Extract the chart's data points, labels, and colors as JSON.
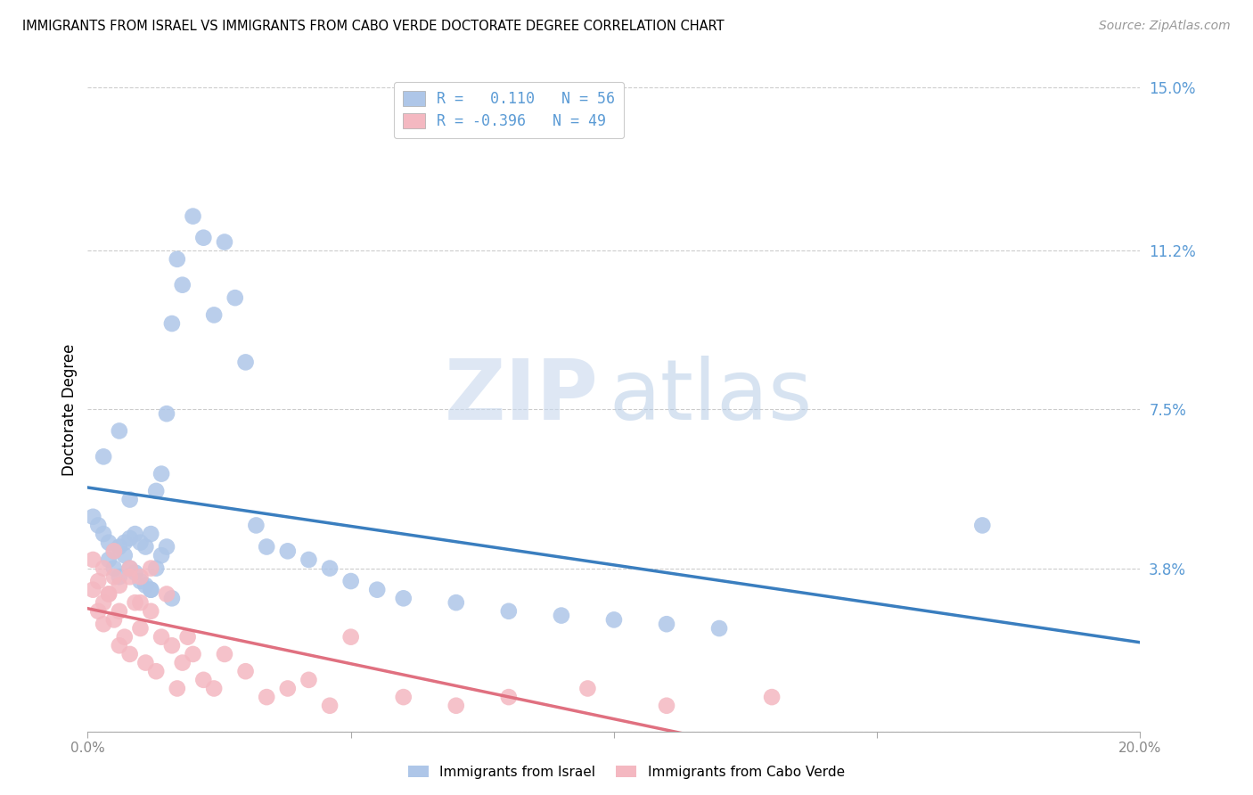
{
  "title": "IMMIGRANTS FROM ISRAEL VS IMMIGRANTS FROM CABO VERDE DOCTORATE DEGREE CORRELATION CHART",
  "source": "Source: ZipAtlas.com",
  "ylabel": "Doctorate Degree",
  "xlim": [
    0.0,
    0.2
  ],
  "ylim": [
    0.0,
    0.15
  ],
  "ytick_vals": [
    0.0,
    0.038,
    0.075,
    0.112,
    0.15
  ],
  "ytick_labels": [
    "",
    "3.8%",
    "7.5%",
    "11.2%",
    "15.0%"
  ],
  "xtick_vals": [
    0.0,
    0.05,
    0.1,
    0.15,
    0.2
  ],
  "xtick_labels": [
    "0.0%",
    "",
    "",
    "",
    "20.0%"
  ],
  "legend1_r": "0.110",
  "legend1_n": "56",
  "legend2_r": "-0.396",
  "legend2_n": "49",
  "israel_color": "#aec6e8",
  "caboverde_color": "#f4b8c1",
  "israel_line_color": "#3a7ebf",
  "caboverde_line_color": "#e07080",
  "grid_color": "#cccccc",
  "israel_x": [
    0.001,
    0.002,
    0.003,
    0.004,
    0.004,
    0.005,
    0.005,
    0.006,
    0.006,
    0.007,
    0.007,
    0.008,
    0.008,
    0.009,
    0.009,
    0.01,
    0.01,
    0.011,
    0.011,
    0.012,
    0.012,
    0.013,
    0.013,
    0.014,
    0.014,
    0.015,
    0.015,
    0.016,
    0.017,
    0.018,
    0.02,
    0.022,
    0.024,
    0.026,
    0.028,
    0.03,
    0.032,
    0.034,
    0.038,
    0.042,
    0.046,
    0.05,
    0.055,
    0.06,
    0.07,
    0.08,
    0.09,
    0.1,
    0.11,
    0.12,
    0.003,
    0.006,
    0.008,
    0.012,
    0.016,
    0.17
  ],
  "israel_y": [
    0.05,
    0.048,
    0.046,
    0.044,
    0.04,
    0.042,
    0.038,
    0.043,
    0.036,
    0.044,
    0.041,
    0.045,
    0.038,
    0.046,
    0.037,
    0.044,
    0.035,
    0.043,
    0.034,
    0.046,
    0.033,
    0.056,
    0.038,
    0.06,
    0.041,
    0.074,
    0.043,
    0.095,
    0.11,
    0.104,
    0.12,
    0.115,
    0.097,
    0.114,
    0.101,
    0.086,
    0.048,
    0.043,
    0.042,
    0.04,
    0.038,
    0.035,
    0.033,
    0.031,
    0.03,
    0.028,
    0.027,
    0.026,
    0.025,
    0.024,
    0.064,
    0.07,
    0.054,
    0.033,
    0.031,
    0.048
  ],
  "caboverde_x": [
    0.001,
    0.002,
    0.003,
    0.003,
    0.004,
    0.005,
    0.005,
    0.006,
    0.006,
    0.007,
    0.008,
    0.008,
    0.009,
    0.01,
    0.01,
    0.011,
    0.012,
    0.013,
    0.014,
    0.015,
    0.016,
    0.017,
    0.018,
    0.019,
    0.02,
    0.022,
    0.024,
    0.026,
    0.03,
    0.034,
    0.038,
    0.042,
    0.046,
    0.05,
    0.06,
    0.07,
    0.08,
    0.095,
    0.11,
    0.13,
    0.001,
    0.002,
    0.003,
    0.004,
    0.005,
    0.006,
    0.008,
    0.01,
    0.012
  ],
  "caboverde_y": [
    0.033,
    0.028,
    0.03,
    0.025,
    0.032,
    0.026,
    0.036,
    0.02,
    0.034,
    0.022,
    0.038,
    0.018,
    0.03,
    0.024,
    0.036,
    0.016,
    0.028,
    0.014,
    0.022,
    0.032,
    0.02,
    0.01,
    0.016,
    0.022,
    0.018,
    0.012,
    0.01,
    0.018,
    0.014,
    0.008,
    0.01,
    0.012,
    0.006,
    0.022,
    0.008,
    0.006,
    0.008,
    0.01,
    0.006,
    0.008,
    0.04,
    0.035,
    0.038,
    0.032,
    0.042,
    0.028,
    0.036,
    0.03,
    0.038
  ]
}
